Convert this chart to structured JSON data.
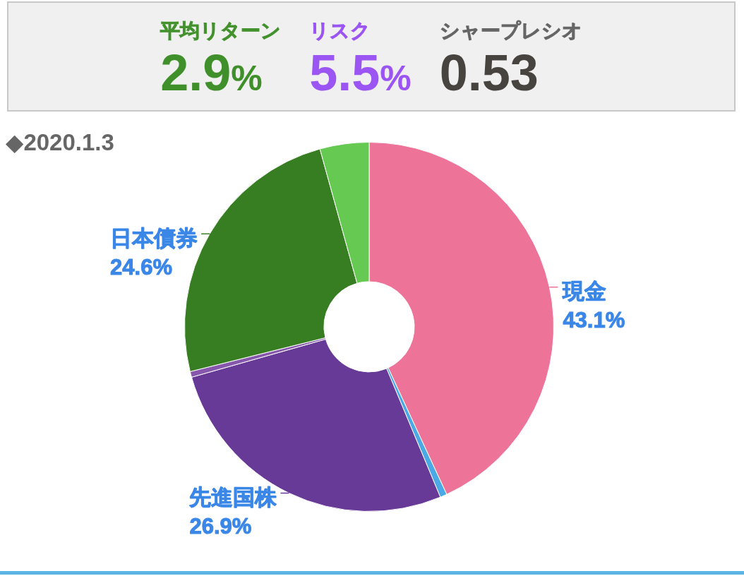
{
  "chart_data": [
    {
      "type": "other",
      "categories": [
        "平均リターン",
        "リスク",
        "シャープレシオ"
      ],
      "value_labels": [
        "2.9%",
        "5.5%",
        "0.53"
      ]
    },
    {
      "type": "donut",
      "title": "◆2020.1.3",
      "categories": [
        "現金",
        null,
        "先進国株",
        null,
        "日本債券",
        null
      ],
      "values": [
        43.1,
        0.6,
        26.9,
        0.5,
        24.6,
        4.3
      ],
      "value_labels": [
        "43.1%",
        null,
        "26.9%",
        null,
        "24.6%",
        null
      ],
      "colors": [
        "#ee7399",
        "#4ba9e6",
        "#683a98",
        "#8756ad",
        "#377e22",
        "#66c951"
      ]
    }
  ]
}
